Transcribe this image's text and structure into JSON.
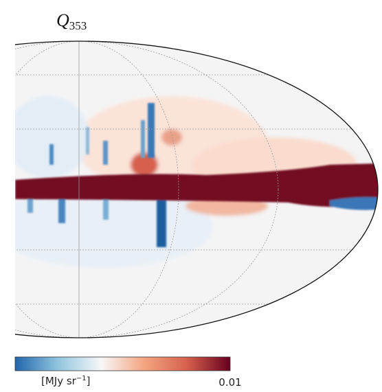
{
  "title": {
    "symbol": "Q",
    "subscript": "353"
  },
  "colorbar": {
    "label": {
      "unit": "[MJy sr",
      "exponent": "−1",
      "close": "]"
    },
    "tick_label": "0.01"
  }
}
